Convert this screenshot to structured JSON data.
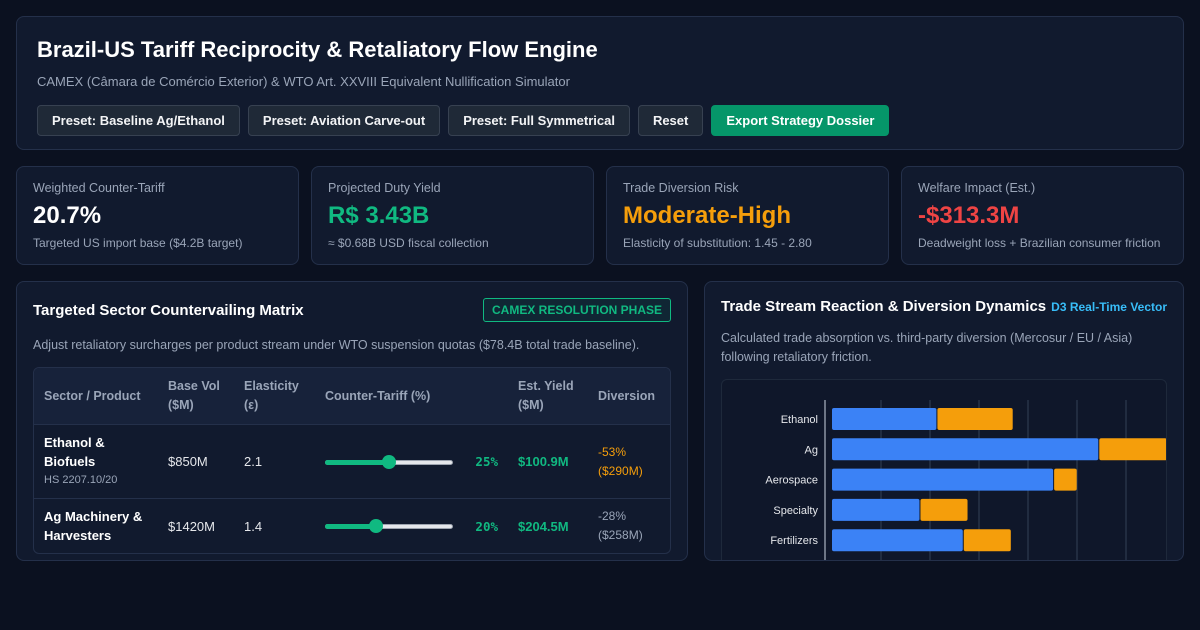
{
  "header": {
    "title": "Brazil-US Tariff Reciprocity & Retaliatory Flow Engine",
    "subtitle": "CAMEX (Câmara de Comércio Exterior) & WTO Art. XXVIII Equivalent Nullification Simulator",
    "buttons": [
      "Preset: Baseline Ag/Ethanol",
      "Preset: Aviation Carve-out",
      "Preset: Full Symmetrical",
      "Reset",
      "Export Strategy Dossier"
    ]
  },
  "kpis": [
    {
      "label": "Weighted Counter-Tariff",
      "value": "20.7%",
      "note": "Targeted US import base ($4.2B target)",
      "color": "#ffffff"
    },
    {
      "label": "Projected Duty Yield",
      "value": "R$ 3.43B",
      "note": "≈ $0.68B USD fiscal collection",
      "color": "#10b981"
    },
    {
      "label": "Trade Diversion Risk",
      "value": "Moderate-High",
      "note": "Elasticity of substitution: 1.45 - 2.80",
      "color": "#f59e0b"
    },
    {
      "label": "Welfare Impact (Est.)",
      "value": "-$313.3M",
      "note": "Deadweight loss + Brazilian consumer friction",
      "color": "#ef4444"
    }
  ],
  "matrix": {
    "title": "Targeted Sector Countervailing Matrix",
    "badge": "CAMEX RESOLUTION PHASE",
    "description": "Adjust retaliatory surcharges per product stream under WTO suspension quotas ($78.4B total trade baseline).",
    "columns": [
      "Sector / Product",
      "Base Vol ($M)",
      "Elasticity (ε)",
      "Counter-Tariff (%)",
      "Est. Yield ($M)",
      "Diversion"
    ],
    "rows": [
      {
        "name": "Ethanol & Biofuels",
        "hs": "HS 2207.10/20",
        "base": "$850M",
        "elasticity": "2.1",
        "tariff": 25,
        "tariff_label": "25%",
        "yield": "$100.9M",
        "diversion_pct": "-53%",
        "diversion_amt": "($290M)",
        "diversion_color": "amber"
      },
      {
        "name": "Ag Machinery & Harvesters",
        "hs": "",
        "base": "$1420M",
        "elasticity": "1.4",
        "tariff": 20,
        "tariff_label": "20%",
        "yield": "$204.5M",
        "diversion_pct": "-28%",
        "diversion_amt": "($258M)",
        "diversion_color": "grey"
      }
    ]
  },
  "stream": {
    "title": "Trade Stream Reaction & Diversion Dynamics",
    "tag": "D3 Real-Time Vector",
    "description": "Calculated trade absorption vs. third-party diversion (Mercosur / EU / Asia) following retaliatory friction."
  },
  "chart_data": {
    "type": "bar",
    "orientation": "horizontal",
    "stacked": true,
    "categories": [
      "Ethanol",
      "Ag",
      "Aerospace",
      "Specialty",
      "Fertilizers"
    ],
    "series": [
      {
        "values": [
          560,
          1420,
          1180,
          470,
          700
        ],
        "color": "#3b82f6"
      },
      {
        "values": [
          400,
          360,
          120,
          250,
          250
        ],
        "color": "#f59e0b"
      }
    ],
    "xlim": [
      0,
      1700
    ],
    "grid": true
  }
}
